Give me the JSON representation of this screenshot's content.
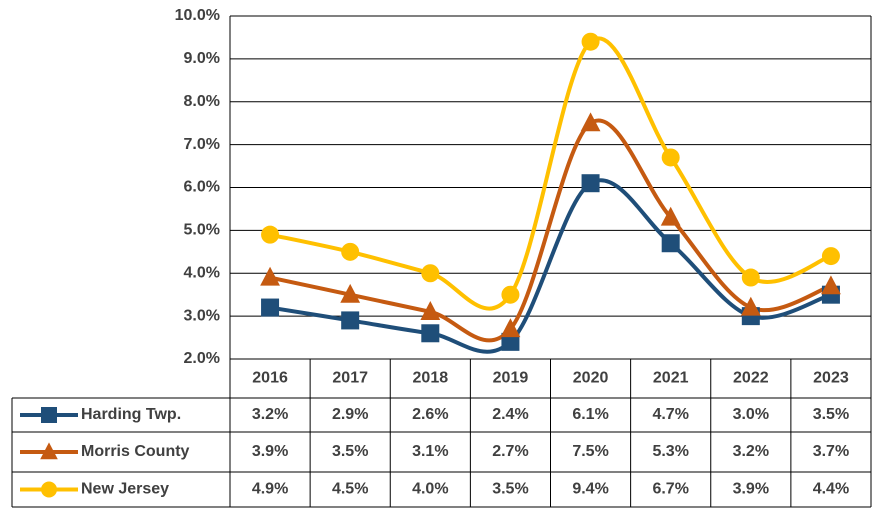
{
  "chart_data": {
    "type": "line",
    "categories": [
      "2016",
      "2017",
      "2018",
      "2019",
      "2020",
      "2021",
      "2022",
      "2023"
    ],
    "series": [
      {
        "name": "Harding Twp.",
        "color": "#1f4e79",
        "marker": "square",
        "values": [
          3.2,
          2.9,
          2.6,
          2.4,
          6.1,
          4.7,
          3.0,
          3.5
        ],
        "value_labels": [
          "3.2%",
          "2.9%",
          "2.6%",
          "2.4%",
          "6.1%",
          "4.7%",
          "3.0%",
          "3.5%"
        ]
      },
      {
        "name": "Morris County",
        "color": "#c55a11",
        "marker": "triangle",
        "values": [
          3.9,
          3.5,
          3.1,
          2.7,
          7.5,
          5.3,
          3.2,
          3.7
        ],
        "value_labels": [
          "3.9%",
          "3.5%",
          "3.1%",
          "2.7%",
          "7.5%",
          "5.3%",
          "3.2%",
          "3.7%"
        ]
      },
      {
        "name": "New Jersey",
        "color": "#ffc000",
        "marker": "circle",
        "values": [
          4.9,
          4.5,
          4.0,
          3.5,
          9.4,
          6.7,
          3.9,
          4.4
        ],
        "value_labels": [
          "4.9%",
          "4.5%",
          "4.0%",
          "3.5%",
          "9.4%",
          "6.7%",
          "3.9%",
          "4.4%"
        ]
      }
    ],
    "ylim": [
      2,
      10
    ],
    "yticks": [
      {
        "value": 2,
        "label": "2.0%"
      },
      {
        "value": 3,
        "label": "3.0%"
      },
      {
        "value": 4,
        "label": "4.0%"
      },
      {
        "value": 5,
        "label": "5.0%"
      },
      {
        "value": 6,
        "label": "6.0%"
      },
      {
        "value": 7,
        "label": "7.0%"
      },
      {
        "value": 8,
        "label": "8.0%"
      },
      {
        "value": 9,
        "label": "9.0%"
      },
      {
        "value": 10,
        "label": "10.0%"
      }
    ],
    "grid": true,
    "smooth": true,
    "data_table": true
  }
}
